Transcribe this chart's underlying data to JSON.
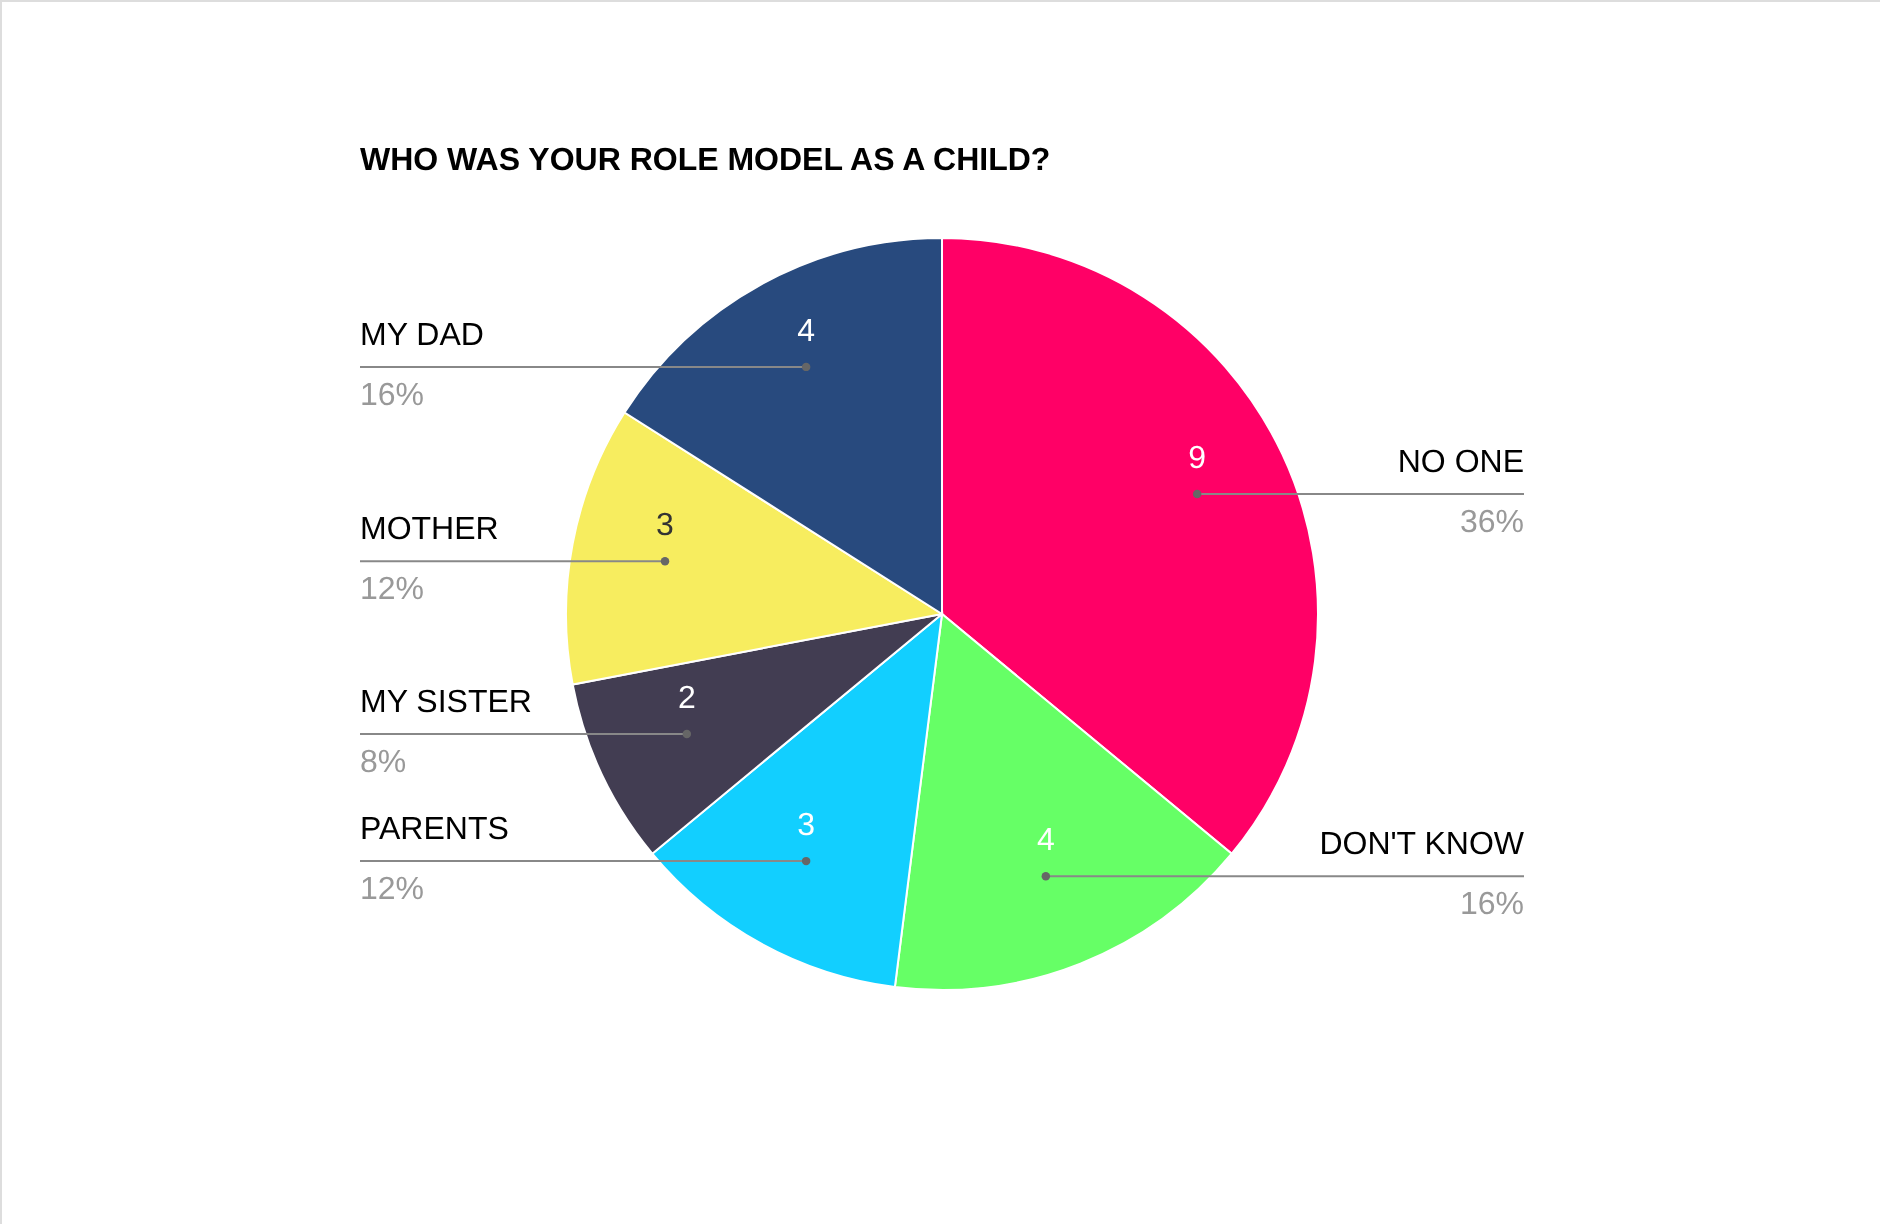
{
  "chart_data": {
    "type": "pie",
    "title": "WHO WAS YOUR ROLE MODEL AS A CHILD?",
    "categories": [
      "NO ONE",
      "DON'T KNOW",
      "PARENTS",
      "MY SISTER",
      "MOTHER",
      "MY DAD"
    ],
    "values": [
      9,
      4,
      3,
      2,
      3,
      4
    ],
    "colors": [
      "#ff0066",
      "#66ff66",
      "#12cfff",
      "#423d52",
      "#f7ed5f",
      "#284a7e"
    ],
    "value_labels": [
      "9",
      "4",
      "3",
      "2",
      "3",
      "4"
    ],
    "annotations": [
      {
        "text": "36%",
        "x": "NO ONE"
      },
      {
        "text": "16%",
        "x": "DON'T KNOW"
      },
      {
        "text": "12%",
        "x": "PARENTS"
      },
      {
        "text": "8%",
        "x": "MY SISTER"
      },
      {
        "text": "12%",
        "x": "MOTHER"
      },
      {
        "text": "16%",
        "x": "MY DAD"
      }
    ]
  }
}
